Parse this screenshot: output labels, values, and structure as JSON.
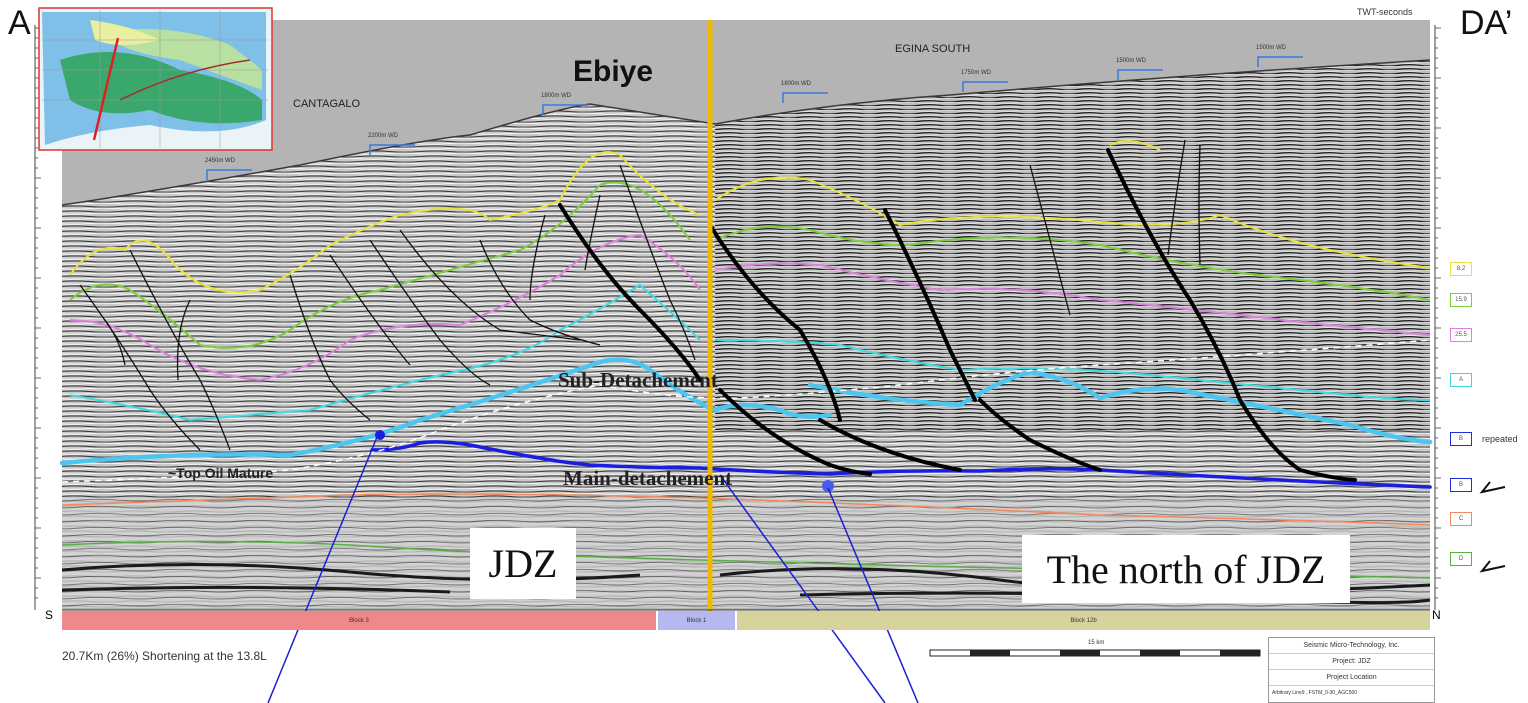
{
  "corners": {
    "left": "A",
    "right": "DA’"
  },
  "axis_title": "TWT-seconds",
  "title": "Ebiye",
  "regions": {
    "west": "CANTAGALO",
    "east": "EGINA SOUTH"
  },
  "water_depths": [
    "2450m WD",
    "2200m WD",
    "1800m WD",
    "1800m WD",
    "1750m WD",
    "1500m WD",
    "1500m WD"
  ],
  "labels": {
    "sub_detachment": "Sub-Detachement",
    "main_detachment": "Main-detachement",
    "top_oil": "~Top Oil Mature"
  },
  "boxes": {
    "left": "JDZ",
    "right": "The north of JDZ"
  },
  "directions": {
    "south": "S",
    "north": "N"
  },
  "blocks": [
    "Block 3",
    "Block 1",
    "Block 12b"
  ],
  "shortening_note": "20.7Km (26%) Shortening at the 13.8L",
  "scale_label": "15 km",
  "horizons": [
    {
      "label": "8.2",
      "color": "#e8e23c"
    },
    {
      "label": "15.9",
      "color": "#7ccc3c"
    },
    {
      "label": "25.5",
      "color": "#e07ee0"
    },
    {
      "label": "A",
      "color": "#40d8e0"
    },
    {
      "label": "B",
      "color": "#2030d8",
      "note": "repeated"
    },
    {
      "label": "B",
      "color": "#2030d8"
    },
    {
      "label": "C",
      "color": "#f08a5a"
    },
    {
      "label": "D",
      "color": "#58b040"
    }
  ],
  "credits": {
    "company": "Seismic Micro-Technology, Inc.",
    "project": "Project: JDZ",
    "location": "Project Location",
    "footer": "Arbitrary Line9 , FSTM_0-30_AGC500"
  },
  "colors": {
    "marker": "#f0b800",
    "main_detachment": "#1a1ee0",
    "sub_detachment": "#4cc6f0",
    "block3": "#f0888a",
    "block1": "#b8b8f0",
    "block12b": "#d8d29c"
  }
}
